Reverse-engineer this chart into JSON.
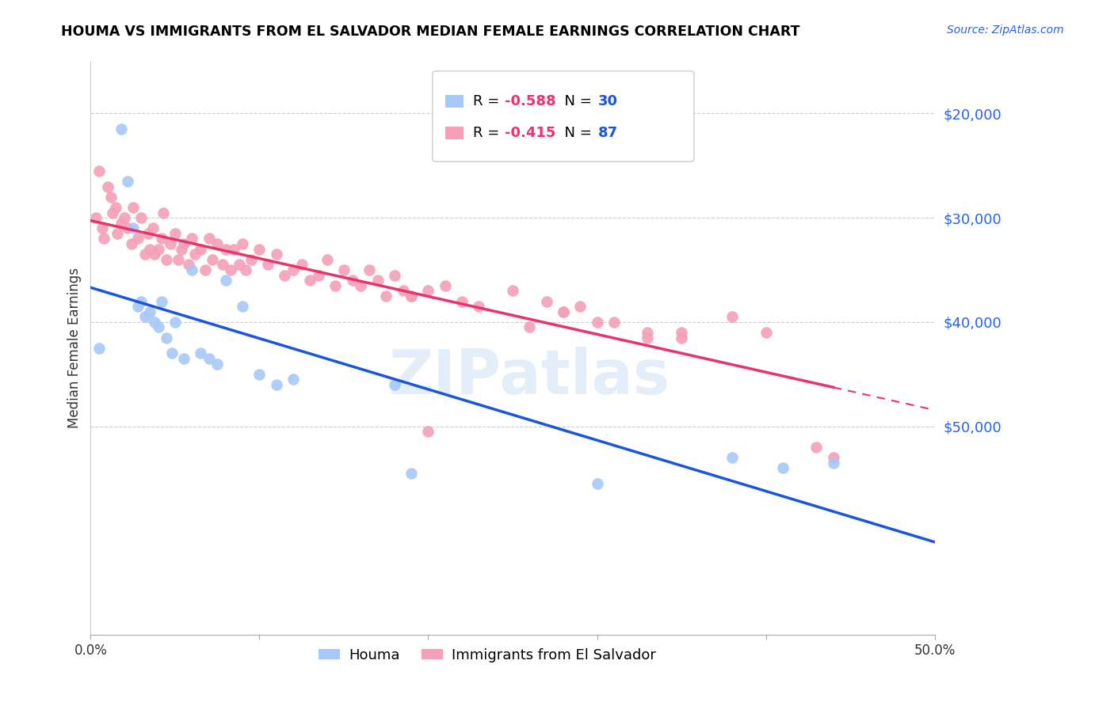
{
  "title": "HOUMA VS IMMIGRANTS FROM EL SALVADOR MEDIAN FEMALE EARNINGS CORRELATION CHART",
  "source": "Source: ZipAtlas.com",
  "ylabel": "Median Female Earnings",
  "xlim": [
    0.0,
    0.5
  ],
  "ylim": [
    0,
    55000
  ],
  "yticks": [
    20000,
    30000,
    40000,
    50000
  ],
  "xticks": [
    0.0,
    0.1,
    0.2,
    0.3,
    0.4,
    0.5
  ],
  "xtick_labels": [
    "0.0%",
    "",
    "",
    "",
    "",
    "50.0%"
  ],
  "right_ytick_labels": [
    "$50,000",
    "$40,000",
    "$30,000",
    "$20,000"
  ],
  "houma_R": -0.588,
  "houma_N": 30,
  "salvador_R": -0.415,
  "salvador_N": 87,
  "houma_color": "#a8c8f8",
  "houma_line_color": "#1a56db",
  "salvador_color": "#f4a0b8",
  "salvador_line_color": "#e8336d",
  "watermark": "ZIPatlas",
  "houma_scatter_x": [
    0.005,
    0.018,
    0.022,
    0.025,
    0.028,
    0.03,
    0.032,
    0.035,
    0.038,
    0.04,
    0.042,
    0.045,
    0.048,
    0.05,
    0.055,
    0.06,
    0.065,
    0.07,
    0.075,
    0.08,
    0.09,
    0.1,
    0.11,
    0.12,
    0.18,
    0.19,
    0.3,
    0.38,
    0.41,
    0.44
  ],
  "houma_scatter_y": [
    27500,
    48500,
    43500,
    39000,
    31500,
    32000,
    30500,
    31000,
    30000,
    29500,
    32000,
    28500,
    27000,
    30000,
    26500,
    35000,
    27000,
    26500,
    26000,
    34000,
    31500,
    25000,
    24000,
    24500,
    24000,
    15500,
    14500,
    17000,
    16000,
    16500
  ],
  "salvador_scatter_x": [
    0.003,
    0.005,
    0.007,
    0.008,
    0.01,
    0.012,
    0.013,
    0.015,
    0.016,
    0.018,
    0.02,
    0.022,
    0.024,
    0.025,
    0.028,
    0.03,
    0.032,
    0.034,
    0.035,
    0.037,
    0.038,
    0.04,
    0.042,
    0.043,
    0.045,
    0.047,
    0.05,
    0.052,
    0.054,
    0.055,
    0.058,
    0.06,
    0.062,
    0.065,
    0.068,
    0.07,
    0.072,
    0.075,
    0.078,
    0.08,
    0.083,
    0.085,
    0.088,
    0.09,
    0.092,
    0.095,
    0.1,
    0.105,
    0.11,
    0.115,
    0.12,
    0.125,
    0.13,
    0.135,
    0.14,
    0.145,
    0.15,
    0.155,
    0.16,
    0.165,
    0.17,
    0.175,
    0.18,
    0.185,
    0.19,
    0.2,
    0.21,
    0.22,
    0.23,
    0.25,
    0.27,
    0.28,
    0.3,
    0.31,
    0.33,
    0.35,
    0.38,
    0.4,
    0.43,
    0.44,
    0.28,
    0.29,
    0.33,
    0.35,
    0.19,
    0.26,
    0.2
  ],
  "salvador_scatter_y": [
    40000,
    44500,
    39000,
    38000,
    43000,
    42000,
    40500,
    41000,
    38500,
    39500,
    40000,
    39000,
    37500,
    41000,
    38000,
    40000,
    36500,
    38500,
    37000,
    39000,
    36500,
    37000,
    38000,
    40500,
    36000,
    37500,
    38500,
    36000,
    37000,
    37500,
    35500,
    38000,
    36500,
    37000,
    35000,
    38000,
    36000,
    37500,
    35500,
    37000,
    35000,
    37000,
    35500,
    37500,
    35000,
    36000,
    37000,
    35500,
    36500,
    34500,
    35000,
    35500,
    34000,
    34500,
    36000,
    33500,
    35000,
    34000,
    33500,
    35000,
    34000,
    32500,
    34500,
    33000,
    32500,
    33000,
    33500,
    32000,
    31500,
    33000,
    32000,
    31000,
    30000,
    30000,
    29000,
    29000,
    30500,
    29000,
    18000,
    17000,
    31000,
    31500,
    28500,
    28500,
    32500,
    29500,
    19500
  ]
}
